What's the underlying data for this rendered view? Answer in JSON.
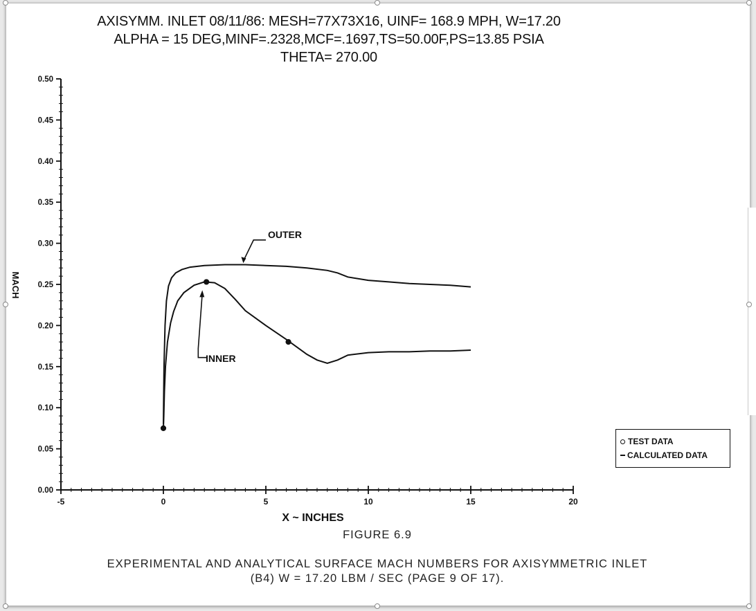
{
  "chart_data": {
    "type": "line",
    "title_lines": [
      "AXISYMM. INLET 08/11/86: MESH=77X73X16, UINF= 168.9 MPH, W=17.20",
      "ALPHA = 15 DEG,MINF=.2328,MCF=.1697,TS=50.00F,PS=13.85 PSIA",
      "THETA= 270.00"
    ],
    "xlabel": "X ~ INCHES",
    "ylabel": "MACH",
    "xlim": [
      -5,
      20
    ],
    "ylim": [
      0,
      0.5
    ],
    "x_ticks": [
      "-5",
      "0",
      "5",
      "10",
      "15",
      "20"
    ],
    "y_ticks": [
      "0.00",
      "0.05",
      "0.10",
      "0.15",
      "0.20",
      "0.25",
      "0.30",
      "0.35",
      "0.40",
      "0.45",
      "0.50"
    ],
    "series": [
      {
        "name": "OUTER",
        "kind": "calculated",
        "x": [
          0.0,
          0.03,
          0.08,
          0.15,
          0.25,
          0.4,
          0.6,
          0.9,
          1.3,
          2.0,
          3.0,
          4.0,
          5.0,
          6.0,
          7.0,
          8.0,
          8.5,
          9.0,
          10.0,
          11.0,
          12.0,
          13.0,
          14.0,
          15.0
        ],
        "y": [
          0.08,
          0.15,
          0.2,
          0.23,
          0.248,
          0.258,
          0.264,
          0.268,
          0.271,
          0.273,
          0.274,
          0.274,
          0.273,
          0.272,
          0.27,
          0.267,
          0.264,
          0.259,
          0.255,
          0.253,
          0.251,
          0.25,
          0.249,
          0.247
        ]
      },
      {
        "name": "INNER",
        "kind": "calculated",
        "x": [
          0.0,
          0.02,
          0.05,
          0.1,
          0.2,
          0.35,
          0.5,
          0.7,
          1.0,
          1.5,
          2.0,
          2.5,
          3.0,
          3.5,
          4.0,
          5.0,
          6.0,
          7.0,
          7.5,
          8.0,
          8.5,
          9.0,
          10.0,
          11.0,
          12.0,
          13.0,
          14.0,
          15.0
        ],
        "y": [
          0.075,
          0.09,
          0.12,
          0.15,
          0.18,
          0.203,
          0.217,
          0.23,
          0.24,
          0.249,
          0.253,
          0.252,
          0.245,
          0.232,
          0.218,
          0.2,
          0.183,
          0.165,
          0.158,
          0.154,
          0.158,
          0.164,
          0.167,
          0.168,
          0.168,
          0.169,
          0.169,
          0.17
        ]
      },
      {
        "name": "TEST DATA",
        "kind": "test",
        "x": [
          0.0,
          2.1,
          6.1
        ],
        "y": [
          0.075,
          0.253,
          0.18
        ]
      }
    ],
    "annotations": [
      {
        "text": "OUTER",
        "points_to": "outer curve"
      },
      {
        "text": "INNER",
        "points_to": "inner curve"
      }
    ],
    "legend": {
      "position": "bottom-right",
      "entries": [
        {
          "marker": "circle",
          "label": "TEST DATA"
        },
        {
          "marker": "line",
          "label": "CALCULATED DATA"
        }
      ]
    },
    "grid": false
  },
  "figure": {
    "number": "FIGURE 6.9",
    "caption_lines": [
      "EXPERIMENTAL AND ANALYTICAL SURFACE MACH NUMBERS FOR AXISYMMETRIC INLET",
      "(B4)  W  =  17.20  LBM / SEC   (PAGE 9 OF 17)."
    ]
  }
}
